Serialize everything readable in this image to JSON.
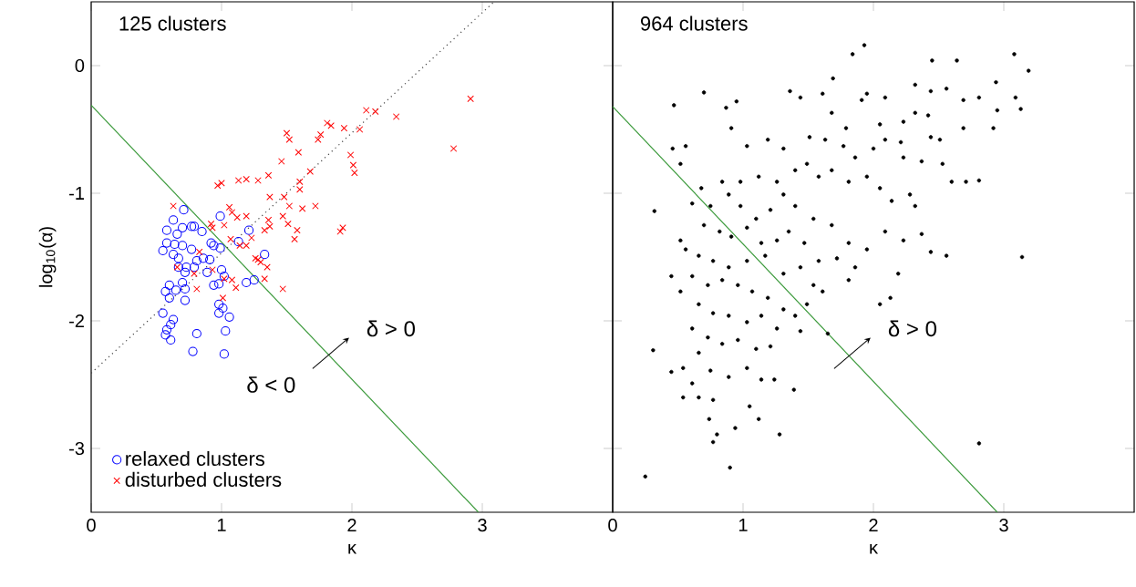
{
  "chart_data": [
    {
      "type": "scatter",
      "xlabel": "κ",
      "ylabel": "log$_{10}$(α)",
      "xlim": [
        0,
        4
      ],
      "ylim": [
        -3.5,
        0.5
      ],
      "xticks": [
        0,
        1,
        2,
        3
      ],
      "yticks": [
        -3,
        -2,
        -1,
        0
      ],
      "grid": false,
      "legend": "bottom left",
      "annotations": [
        "125 clusters",
        "δ < 0",
        "δ > 0"
      ],
      "series": [
        {
          "name": "relaxed clusters",
          "marker": "circle",
          "color": "#0000ff",
          "x": [
            0.71,
            0.63,
            0.58,
            0.7,
            0.66,
            0.79,
            0.77,
            0.85,
            0.99,
            0.58,
            0.64,
            0.7,
            0.77,
            0.55,
            0.63,
            0.67,
            0.92,
            0.94,
            0.99,
            1.13,
            1.21,
            1.33,
            0.91,
            0.81,
            0.73,
            0.72,
            1.0,
            1.02,
            0.98,
            0.94,
            1.25,
            1.19,
            0.7,
            0.6,
            0.57,
            0.65,
            0.72,
            0.6,
            0.72,
            0.98,
            1.01,
            0.98,
            1.06,
            0.55,
            0.63,
            0.61,
            0.58,
            0.57,
            0.61,
            0.81,
            1.03,
            0.78,
            1.02,
            0.79,
            0.86,
            0.89,
            0.67
          ],
          "values": [
            -1.13,
            -1.21,
            -1.29,
            -1.27,
            -1.32,
            -1.26,
            -1.26,
            -1.3,
            -1.18,
            -1.39,
            -1.4,
            -1.41,
            -1.44,
            -1.45,
            -1.48,
            -1.51,
            -1.39,
            -1.41,
            -1.43,
            -1.38,
            -1.29,
            -1.48,
            -1.52,
            -1.53,
            -1.58,
            -1.62,
            -1.6,
            -1.65,
            -1.71,
            -1.72,
            -1.68,
            -1.7,
            -1.7,
            -1.72,
            -1.77,
            -1.76,
            -1.75,
            -1.82,
            -1.84,
            -1.87,
            -1.9,
            -1.94,
            -1.97,
            -1.94,
            -1.99,
            -2.03,
            -2.07,
            -2.11,
            -2.15,
            -2.1,
            -2.08,
            -2.24,
            -2.26,
            -1.58,
            -1.51,
            -1.62,
            -1.58
          ]
        },
        {
          "name": "disturbed clusters",
          "marker": "cross",
          "color": "#ff0000",
          "x": [
            2.91,
            2.78,
            2.34,
            2.18,
            2.11,
            2.06,
            1.94,
            1.84,
            1.81,
            1.74,
            1.76,
            1.5,
            1.52,
            1.59,
            1.46,
            1.68,
            1.6,
            1.36,
            1.28,
            1.13,
            1.19,
            1.0,
            0.97,
            1.99,
            2.01,
            2.02,
            1.6,
            1.37,
            1.48,
            1.52,
            1.62,
            1.72,
            1.93,
            1.91,
            1.47,
            1.36,
            1.37,
            1.33,
            1.51,
            1.58,
            1.56,
            1.23,
            1.19,
            1.06,
            1.08,
            1.12,
            1.19,
            0.63,
            0.92,
            1.02,
            0.93,
            1.07,
            1.14,
            1.28,
            1.35,
            1.3,
            1.26,
            1.02,
            1.08,
            0.79,
            0.66,
            1.01,
            0.81,
            1.33,
            1.47,
            1.11,
            0.93,
            0.83
          ],
          "values": [
            -0.26,
            -0.65,
            -0.4,
            -0.36,
            -0.35,
            -0.5,
            -0.49,
            -0.47,
            -0.45,
            -0.58,
            -0.54,
            -0.53,
            -0.58,
            -0.68,
            -0.75,
            -0.83,
            -0.91,
            -0.86,
            -0.9,
            -0.9,
            -0.89,
            -0.92,
            -0.94,
            -0.7,
            -0.78,
            -0.84,
            -0.97,
            -1.03,
            -1.03,
            -1.1,
            -1.12,
            -1.1,
            -1.27,
            -1.3,
            -1.18,
            -1.21,
            -1.26,
            -1.29,
            -1.24,
            -1.29,
            -1.36,
            -1.35,
            -1.41,
            -1.11,
            -1.15,
            -1.19,
            -1.18,
            -1.1,
            -1.24,
            -1.25,
            -1.27,
            -1.36,
            -1.41,
            -1.52,
            -1.58,
            -1.54,
            -1.51,
            -1.67,
            -1.68,
            -1.63,
            -1.58,
            -1.82,
            -1.75,
            -1.67,
            -1.75,
            -1.74,
            -1.6,
            -1.46
          ]
        },
        {
          "type": "line",
          "line_style": "solid",
          "color": "#3c9a3c",
          "x": [
            0,
            2.97
          ],
          "values": [
            -0.31,
            -3.5
          ]
        },
        {
          "type": "line",
          "line_style": "dotted",
          "color": "#404040",
          "x": [
            0,
            3.09
          ],
          "values": [
            -2.41,
            0.5
          ]
        }
      ]
    },
    {
      "type": "scatter",
      "xlabel": "κ",
      "xlim": [
        0,
        4
      ],
      "ylim": [
        -3.5,
        0.5
      ],
      "xticks": [
        0,
        1,
        2,
        3
      ],
      "yticks": [
        -3,
        -2,
        -1,
        0
      ],
      "grid": false,
      "tick_labels": "x",
      "annotations": [
        "964 clusters",
        "δ > 0"
      ],
      "series": [
        {
          "marker": "circle",
          "color": "#000000",
          "x": [
            0.25,
            0.31,
            0.32,
            0.47,
            0.9,
            0.77,
            1.28,
            1.39,
            2.81,
            3.14,
            3.19,
            3.08,
            1.93,
            1.84,
            2.45,
            2.64,
            0.7,
            0.95,
            0.87,
            2.94,
            3.09,
            3.13,
            2.95,
            2.81,
            2.92,
            2.69,
            2.56,
            2.44,
            2.32,
            2.32,
            2.42,
            2.23,
            2.09,
            1.95,
            1.91,
            1.69,
            1.61,
            1.36,
            1.44,
            1.68,
            1.79,
            2.05,
            2.21,
            2.23,
            2.51,
            2.69,
            2.71,
            2.81,
            2.6,
            2.53,
            2.37,
            2.44,
            2.09,
            2.0,
            1.86,
            1.77,
            1.63,
            1.51,
            1.31,
            1.19,
            1.03,
            0.91,
            0.56,
            0.46,
            0.52,
            0.84,
            0.98,
            1.12,
            1.26,
            1.4,
            1.49,
            1.58,
            1.68,
            1.81,
            1.95,
            2.05,
            2.14,
            2.28,
            2.32,
            2.37,
            2.56,
            2.44,
            2.23,
            2.09,
            1.95,
            1.81,
            1.68,
            1.54,
            1.4,
            1.31,
            1.21,
            1.1,
            0.98,
            0.89,
            0.75,
            0.68,
            0.61,
            0.7,
            0.82,
            0.91,
            1.03,
            1.14,
            1.26,
            1.35,
            1.47,
            1.58,
            1.72,
            1.86,
            1.81,
            2.19,
            2.13,
            2.05,
            0.52,
            0.56,
            0.66,
            0.77,
            0.89,
            1.03,
            1.17,
            1.31,
            1.44,
            1.54,
            1.61,
            1.49,
            1.4,
            1.31,
            1.19,
            1.07,
            0.96,
            0.84,
            0.73,
            0.61,
            0.52,
            0.45,
            0.66,
            0.77,
            0.89,
            1.03,
            1.14,
            1.26,
            1.44,
            1.65,
            0.61,
            0.73,
            0.84,
            0.96,
            1.1,
            1.21,
            0.45,
            0.54,
            0.66,
            0.61,
            0.75,
            0.89,
            1.03,
            1.14,
            1.24,
            0.54,
            0.66,
            0.77,
            0.74,
            0.94,
            1.05,
            1.12,
            0.8
          ],
          "values": [
            -3.22,
            -2.23,
            -1.14,
            -0.31,
            -3.15,
            -2.95,
            -2.89,
            -2.54,
            -2.96,
            -1.5,
            -0.04,
            0.09,
            0.16,
            0.09,
            0.04,
            0.04,
            -0.21,
            -0.28,
            -0.33,
            -0.13,
            -0.25,
            -0.34,
            -0.35,
            -0.25,
            -0.49,
            -0.27,
            -0.18,
            -0.2,
            -0.15,
            -0.37,
            -0.39,
            -0.44,
            -0.25,
            -0.22,
            -0.27,
            -0.1,
            -0.22,
            -0.2,
            -0.25,
            -0.37,
            -0.49,
            -0.46,
            -0.6,
            -0.72,
            -0.58,
            -0.49,
            -0.91,
            -0.9,
            -0.91,
            -0.77,
            -0.75,
            -0.56,
            -0.58,
            -0.65,
            -0.72,
            -0.63,
            -0.58,
            -0.56,
            -0.65,
            -0.58,
            -0.63,
            -0.49,
            -0.63,
            -0.65,
            -0.77,
            -0.91,
            -0.91,
            -0.87,
            -0.91,
            -0.82,
            -0.77,
            -0.87,
            -0.82,
            -0.91,
            -0.87,
            -0.96,
            -1.06,
            -1.01,
            -1.1,
            -1.32,
            -1.49,
            -1.46,
            -1.37,
            -1.3,
            -1.44,
            -1.39,
            -1.25,
            -1.2,
            -1.1,
            -1.01,
            -1.13,
            -1.2,
            -1.1,
            -1.01,
            -1.1,
            -0.96,
            -1.08,
            -1.25,
            -1.3,
            -1.34,
            -1.27,
            -1.39,
            -1.37,
            -1.3,
            -1.39,
            -1.53,
            -1.51,
            -1.58,
            -1.68,
            -1.63,
            -1.82,
            -1.87,
            -1.37,
            -1.44,
            -1.49,
            -1.53,
            -1.58,
            -1.53,
            -1.49,
            -1.63,
            -1.58,
            -1.72,
            -1.77,
            -1.87,
            -1.96,
            -1.91,
            -1.82,
            -1.77,
            -1.72,
            -1.68,
            -1.72,
            -1.65,
            -1.77,
            -1.65,
            -1.87,
            -1.94,
            -1.96,
            -2.01,
            -1.96,
            -2.06,
            -2.08,
            -2.1,
            -2.06,
            -2.13,
            -2.18,
            -2.15,
            -2.22,
            -2.2,
            -2.4,
            -2.37,
            -2.25,
            -2.49,
            -2.39,
            -2.44,
            -2.37,
            -2.46,
            -2.46,
            -2.6,
            -2.6,
            -2.62,
            -2.77,
            -2.84,
            -2.67,
            -2.77,
            -2.89
          ]
        },
        {
          "type": "line",
          "line_style": "solid",
          "color": "#3c9a3c",
          "x": [
            0,
            2.95
          ],
          "values": [
            -0.32,
            -3.5
          ]
        }
      ]
    }
  ]
}
